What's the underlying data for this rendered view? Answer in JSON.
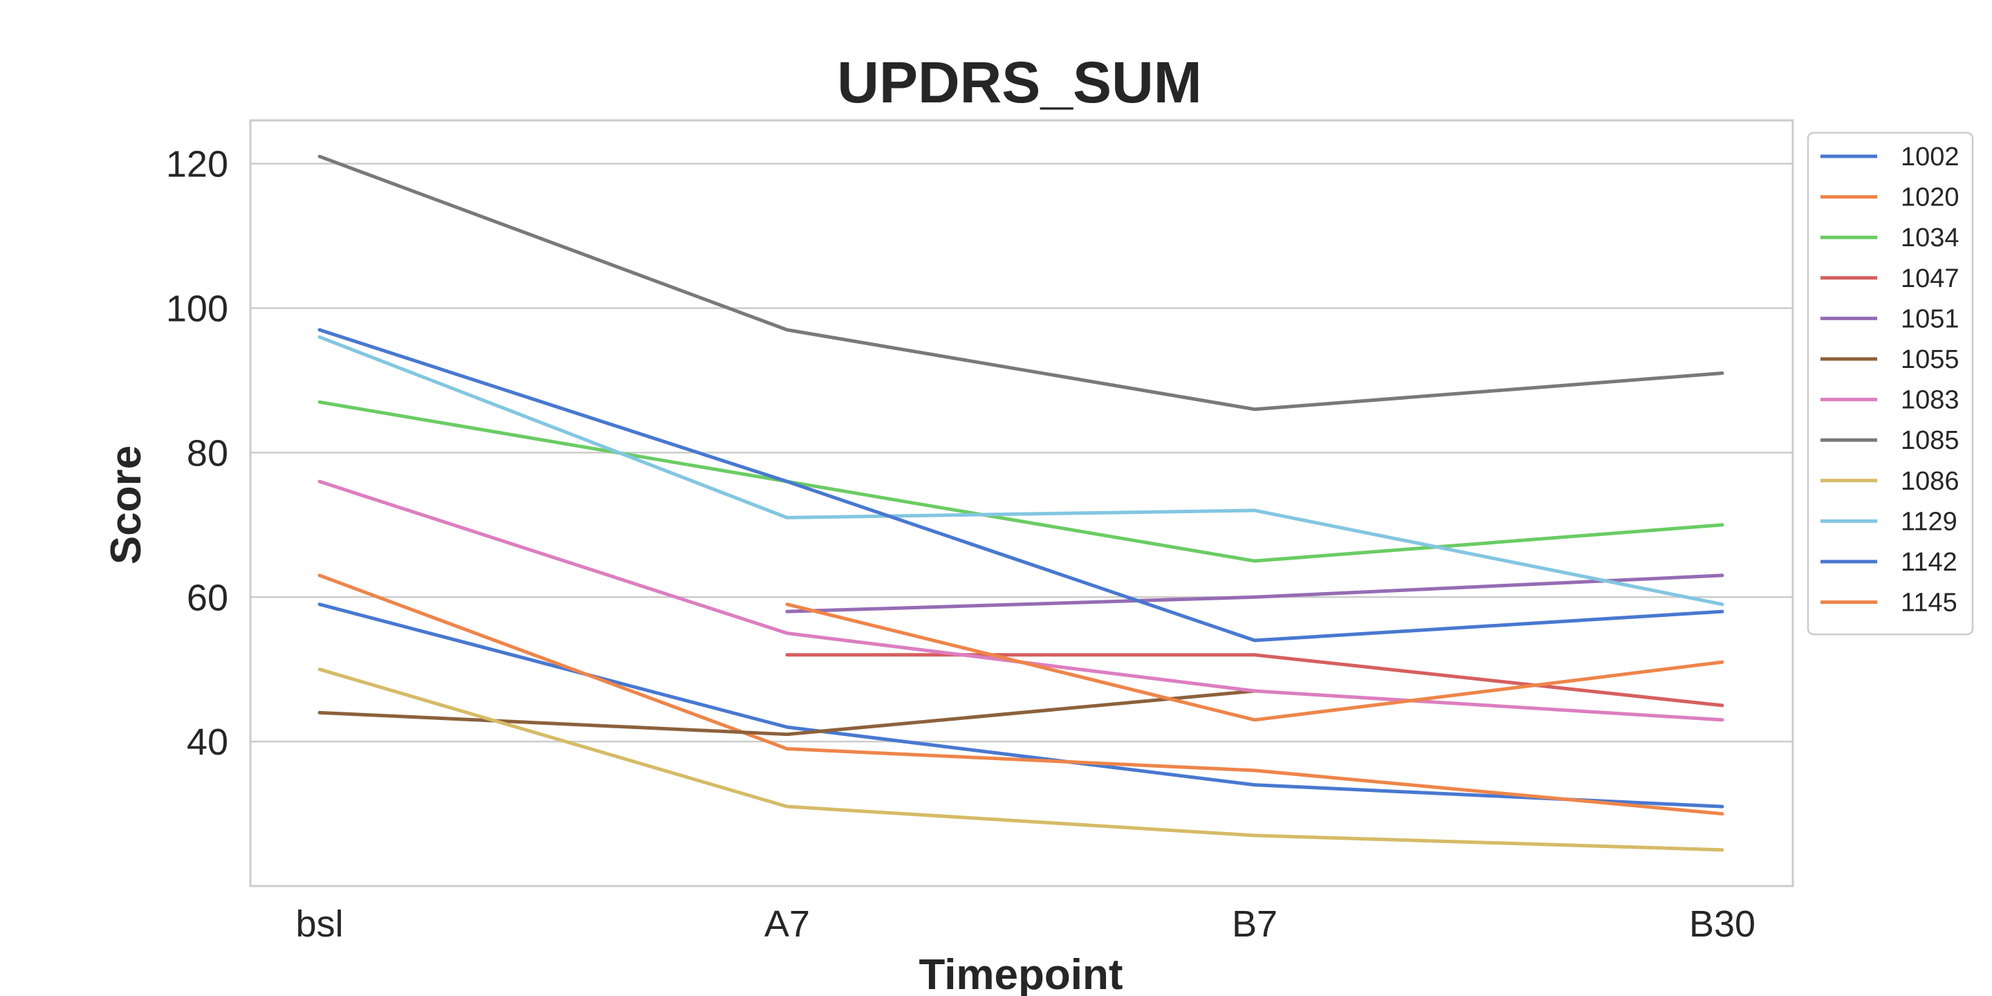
{
  "chart_data": {
    "type": "line",
    "title": "UPDRS_SUM",
    "xlabel": "Timepoint",
    "ylabel": "Score",
    "categories": [
      "bsl",
      "A7",
      "B7",
      "B30"
    ],
    "ylim": [
      20,
      126
    ],
    "yticks": [
      40,
      60,
      80,
      100,
      120
    ],
    "grid": true,
    "legend_position": "right, outside plot",
    "series": [
      {
        "name": "1002",
        "color": "#4878d0",
        "values": [
          59,
          42,
          34,
          31
        ]
      },
      {
        "name": "1020",
        "color": "#ee854a",
        "values": [
          63,
          39,
          36,
          30
        ]
      },
      {
        "name": "1034",
        "color": "#6acc64",
        "values": [
          87,
          76,
          65,
          70
        ]
      },
      {
        "name": "1047",
        "color": "#d65f5f",
        "values": [
          null,
          52,
          52,
          45
        ]
      },
      {
        "name": "1051",
        "color": "#956cb4",
        "values": [
          null,
          58,
          60,
          63
        ]
      },
      {
        "name": "1055",
        "color": "#8c613c",
        "values": [
          44,
          41,
          47,
          null
        ]
      },
      {
        "name": "1083",
        "color": "#dc7ec0",
        "values": [
          76,
          55,
          47,
          43
        ]
      },
      {
        "name": "1085",
        "color": "#797979",
        "values": [
          121,
          97,
          86,
          91
        ]
      },
      {
        "name": "1086",
        "color": "#d5bb67",
        "values": [
          50,
          31,
          27,
          25
        ]
      },
      {
        "name": "1129",
        "color": "#82c6e2",
        "values": [
          96,
          71,
          72,
          59
        ]
      },
      {
        "name": "1142",
        "color": "#4878d0",
        "values": [
          97,
          76,
          54,
          58
        ]
      },
      {
        "name": "1145",
        "color": "#ee854a",
        "values": [
          null,
          59,
          43,
          51
        ]
      }
    ]
  }
}
